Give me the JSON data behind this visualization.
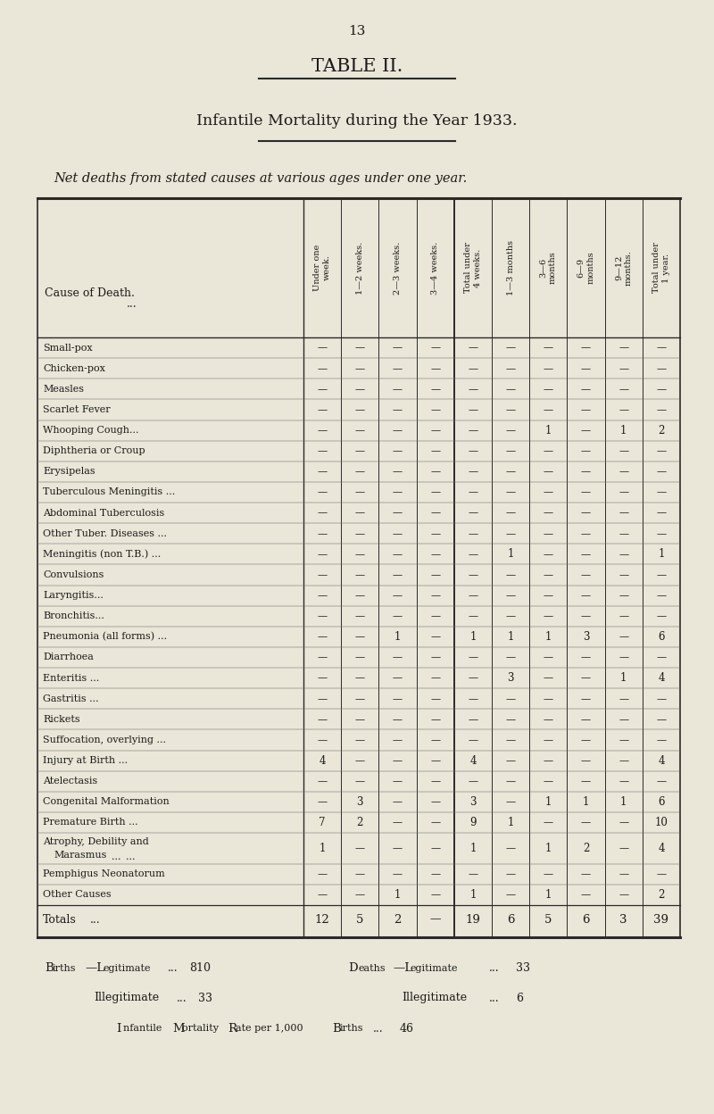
{
  "page_number": "13",
  "title": "TABLE II.",
  "subtitle": "Infantile Mortality during the Year 1933.",
  "subtitle2": "Net deaths from stated causes at various ages under one year.",
  "bg_color": "#eae6d8",
  "col_headers": [
    "Under one\nweek.",
    "1—2\nweeks.",
    "2—3\nweeks.",
    "3—4\nweeks.",
    "Total under\n4 weeks.",
    "1—3 months",
    "3—6\nmonths",
    "6—9\nmonths",
    "9—12\nmonths.",
    "Total under\n1 year."
  ],
  "causes": [
    "Small-pox",
    "Chicken-pox",
    "Measles",
    "Scarlet Fever",
    "Whooping Cough...",
    "Diphtheria or Croup",
    "Erysipelas",
    "Tuberculous Meningitis ...",
    "Abdominal Tuberculosis",
    "Other Tuber. Diseases ...",
    "Meningitis (non T.B.) ...",
    "Convulsions",
    "Laryngitis...",
    "Bronchitis...",
    "Pneumonia (all forms) ...",
    "Diarrhoea",
    "Enteritis ...",
    "Gastritis ...",
    "Rickets",
    "Suffocation, overlying ...",
    "Injury at Birth ...",
    "Atelectasis",
    "Congenital Malformation",
    "Premature Birth ...",
    "Atrophy, Debility and",
    "Pemphigus Neonatorum",
    "Other Causes"
  ],
  "cause_dots": [
    [
      "Small-pox",
      "...   ..."
    ],
    [
      "Chicken-pox",
      "...   ..."
    ],
    [
      "Measles",
      "...   ...   ..."
    ],
    [
      "Scarlet Fever",
      "...   ..."
    ],
    [
      "Whooping Cough...",
      "..."
    ],
    [
      "Diphtheria or Croup",
      "..."
    ],
    [
      "Erysipelas",
      "...   ..."
    ],
    [
      "Tuberculous Meningitis ...",
      ""
    ],
    [
      "Abdominal Tuberculosis",
      ""
    ],
    [
      "Other Tuber. Diseases",
      "..."
    ],
    [
      "Meningitis (non T.B.)",
      "..."
    ],
    [
      "Convulsions",
      "...   ..."
    ],
    [
      "Laryngitis...",
      "...   ..."
    ],
    [
      "Bronchitis...",
      "...   ..."
    ],
    [
      "Pneumonia (all forms)",
      "..."
    ],
    [
      "Diarrhoea",
      "...   ..."
    ],
    [
      "Enteritis ...",
      "...   ..."
    ],
    [
      "Gastritis ...",
      "...   ..."
    ],
    [
      "Rickets",
      "...   ...   ..."
    ],
    [
      "Suffocation, overlying",
      "..."
    ],
    [
      "Injury at Birth ...",
      "..."
    ],
    [
      "Atelectasis",
      "...   ..."
    ],
    [
      "Congenital Malformation",
      ""
    ],
    [
      "Premature Birth ...",
      "..."
    ],
    [
      "Atrophy, Debility and",
      ""
    ],
    [
      "Pemphigus Neonatorum",
      ""
    ],
    [
      "Other Causes",
      "...   ..."
    ]
  ],
  "data": [
    [
      null,
      null,
      null,
      null,
      null,
      null,
      null,
      null,
      null,
      null
    ],
    [
      null,
      null,
      null,
      null,
      null,
      null,
      null,
      null,
      null,
      null
    ],
    [
      null,
      null,
      null,
      null,
      null,
      null,
      null,
      null,
      null,
      null
    ],
    [
      null,
      null,
      null,
      null,
      null,
      null,
      null,
      null,
      null,
      null
    ],
    [
      null,
      null,
      null,
      null,
      null,
      null,
      1,
      null,
      1,
      2
    ],
    [
      null,
      null,
      null,
      null,
      null,
      null,
      null,
      null,
      null,
      null
    ],
    [
      null,
      null,
      null,
      null,
      null,
      null,
      null,
      null,
      null,
      null
    ],
    [
      null,
      null,
      null,
      null,
      null,
      null,
      null,
      null,
      null,
      null
    ],
    [
      null,
      null,
      null,
      null,
      null,
      null,
      null,
      null,
      null,
      null
    ],
    [
      null,
      null,
      null,
      null,
      null,
      null,
      null,
      null,
      null,
      null
    ],
    [
      null,
      null,
      null,
      null,
      null,
      1,
      null,
      null,
      null,
      1
    ],
    [
      null,
      null,
      null,
      null,
      null,
      null,
      null,
      null,
      null,
      null
    ],
    [
      null,
      null,
      null,
      null,
      null,
      null,
      null,
      null,
      null,
      null
    ],
    [
      null,
      null,
      null,
      null,
      null,
      null,
      null,
      null,
      null,
      null
    ],
    [
      null,
      null,
      1,
      null,
      1,
      1,
      1,
      3,
      null,
      6
    ],
    [
      null,
      null,
      null,
      null,
      null,
      null,
      null,
      null,
      null,
      null
    ],
    [
      null,
      null,
      null,
      null,
      null,
      3,
      null,
      null,
      1,
      4
    ],
    [
      null,
      null,
      null,
      null,
      null,
      null,
      null,
      null,
      null,
      null
    ],
    [
      null,
      null,
      null,
      null,
      null,
      null,
      null,
      null,
      null,
      null
    ],
    [
      null,
      null,
      null,
      null,
      null,
      null,
      null,
      null,
      null,
      null
    ],
    [
      4,
      null,
      null,
      null,
      4,
      null,
      null,
      null,
      null,
      4
    ],
    [
      null,
      null,
      null,
      null,
      null,
      null,
      null,
      null,
      null,
      null
    ],
    [
      null,
      3,
      null,
      null,
      3,
      null,
      1,
      1,
      1,
      6
    ],
    [
      7,
      2,
      null,
      null,
      9,
      1,
      null,
      null,
      null,
      10
    ],
    [
      1,
      null,
      null,
      null,
      1,
      null,
      1,
      2,
      null,
      4
    ],
    [
      null,
      null,
      null,
      null,
      null,
      null,
      null,
      null,
      null,
      null
    ],
    [
      null,
      null,
      1,
      null,
      1,
      null,
      1,
      null,
      null,
      2
    ]
  ],
  "totals": [
    12,
    5,
    2,
    null,
    19,
    6,
    5,
    6,
    3,
    39
  ],
  "births_legit": "810",
  "births_illeg": "33",
  "deaths_legit": "33",
  "deaths_illeg": "6",
  "mortality_rate": "46"
}
